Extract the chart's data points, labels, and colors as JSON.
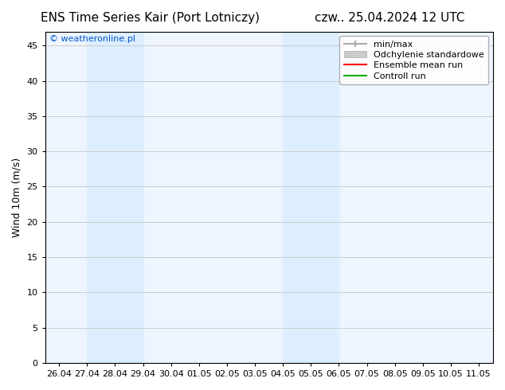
{
  "title_left": "ENS Time Series Kair (Port Lotniczy)",
  "title_right": "czw.. 25.04.2024 12 UTC",
  "ylabel": "Wind 10m (m/s)",
  "watermark": "© weatheronline.pl",
  "ylim": [
    0,
    47
  ],
  "yticks": [
    0,
    5,
    10,
    15,
    20,
    25,
    30,
    35,
    40,
    45
  ],
  "x_labels": [
    "26.04",
    "27.04",
    "28.04",
    "29.04",
    "30.04",
    "01.05",
    "02.05",
    "03.05",
    "04.05",
    "05.05",
    "06.05",
    "07.05",
    "08.05",
    "09.05",
    "10.05",
    "11.05"
  ],
  "shade_regions": [
    [
      "27.04",
      "29.04"
    ],
    [
      "04.05",
      "06.05"
    ]
  ],
  "shade_color": "#ddeeff",
  "background_color": "#ffffff",
  "plot_bg_color": "#eef5ff",
  "grid_color": "#cccccc",
  "title_fontsize": 11,
  "label_fontsize": 9,
  "tick_fontsize": 8,
  "watermark_color": "#0055cc",
  "watermark_fontsize": 8
}
